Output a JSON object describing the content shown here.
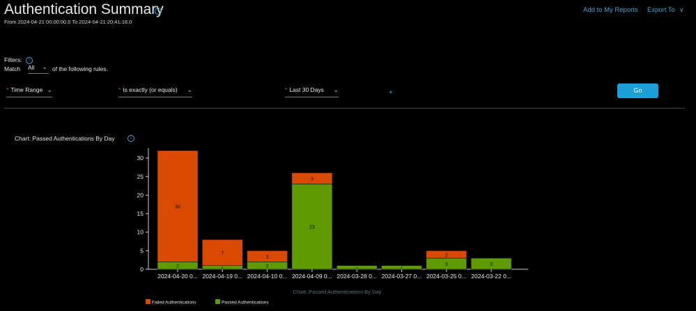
{
  "header": {
    "title": "Authentication Summary",
    "date_range": "From 2024-04-21 00:00:00.0 To 2024-04-21 20:41:18.0",
    "add_to_reports": "Add to My Reports",
    "export_to": "Export To"
  },
  "filters": {
    "label": "Filters:",
    "match_prefix": "Match",
    "match_value": "All",
    "match_suffix": "of the following rules.",
    "rule": {
      "field": "Time Range",
      "operator": "Is exactly (or equals)",
      "value": "Last 30 Days"
    },
    "add_icon": "plus-icon",
    "go_label": "Go"
  },
  "chart_section": {
    "heading": "Chart: Passed Authentications By Day"
  },
  "colors": {
    "passed": "#5e9a00",
    "failed": "#d94a00",
    "accent": "#3ea3d6",
    "go_button": "#1d9fd9"
  },
  "chart_data": {
    "type": "bar",
    "stacked": true,
    "title": "Chart: Passed Authentications By Day",
    "categories": [
      "2024-04-20 0...",
      "2024-04-19 0...",
      "2024-04-10 0...",
      "2024-04-09 0...",
      "2024-03-28 0...",
      "2024-03-27 0...",
      "2024-03-25 0...",
      "2024-03-22 0..."
    ],
    "series": [
      {
        "name": "Passed Authentications",
        "values": [
          2,
          1,
          2,
          23,
          1,
          1,
          3,
          3
        ],
        "labels": [
          "2",
          "1",
          "2",
          "23",
          "1",
          "1",
          "3",
          "3"
        ]
      },
      {
        "name": "Failed Authentications",
        "values": [
          30,
          7,
          3,
          3,
          0,
          0,
          2,
          0
        ],
        "labels": [
          "30",
          "7",
          "3",
          "3",
          "",
          "",
          "2",
          ""
        ]
      }
    ],
    "y_ticks": [
      0,
      5,
      10,
      15,
      20,
      25,
      30
    ],
    "ylim": [
      0,
      32
    ],
    "legend": [
      "Failed Authentications",
      "Passed Authentications"
    ],
    "legend_position": "bottom-left",
    "grid": false
  }
}
